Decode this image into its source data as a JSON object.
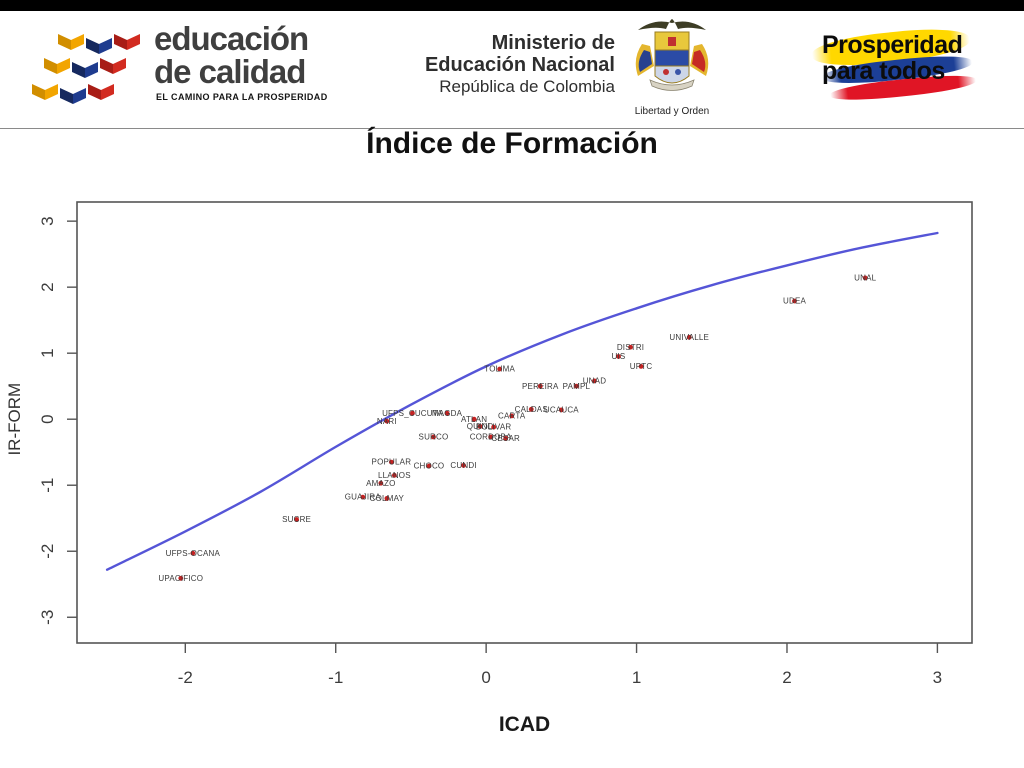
{
  "header": {
    "logo_left": {
      "line1": "educación",
      "line2": "de calidad",
      "tagline": "EL CAMINO PARA LA PROSPERIDAD",
      "colors": {
        "yellow": "#f2a500",
        "blue": "#1f3c8f",
        "red": "#d22b20"
      }
    },
    "logo_center": {
      "line1": "Ministerio de",
      "line2": "Educación Nacional",
      "line3": "República de Colombia",
      "crest_caption": "Libertad y Orden"
    },
    "logo_right": {
      "line1": "Prosperidad",
      "line2": "para todos",
      "colors": {
        "yellow": "#ffd800",
        "blue": "#1c3f96",
        "red": "#e01525"
      }
    },
    "title": "Índice de Formación"
  },
  "chart_data": {
    "type": "scatter",
    "title": "",
    "xlabel": "ICAD",
    "ylabel": "IR-FORM",
    "xlim": [
      -2.72,
      3.23
    ],
    "ylim": [
      -3.39,
      3.29
    ],
    "x_ticks": [
      -2,
      -1,
      0,
      1,
      2,
      3
    ],
    "y_ticks": [
      -3,
      -2,
      -1,
      0,
      1,
      2,
      3
    ],
    "grid": false,
    "point_color": "#c42222",
    "label_color": "#3a3a3a",
    "axis_color": "#555555",
    "tick_label_color": "#3c3c3c",
    "curve_color": "#4747d4",
    "points": [
      {
        "label": "UNAL",
        "x": 2.52,
        "y": 2.14
      },
      {
        "label": "UDEA",
        "x": 2.05,
        "y": 1.79
      },
      {
        "label": "UNIVALLE",
        "x": 1.35,
        "y": 1.24
      },
      {
        "label": "DISTRI",
        "x": 0.96,
        "y": 1.09
      },
      {
        "label": "UIS",
        "x": 0.88,
        "y": 0.95
      },
      {
        "label": "UPTC",
        "x": 1.03,
        "y": 0.8
      },
      {
        "label": "UNAD",
        "x": 0.72,
        "y": 0.58
      },
      {
        "label": "PAMPL",
        "x": 0.6,
        "y": 0.5
      },
      {
        "label": "PEREIRA",
        "x": 0.36,
        "y": 0.5
      },
      {
        "label": "TOLIMA",
        "x": 0.09,
        "y": 0.76
      },
      {
        "label": "CALDAS",
        "x": 0.3,
        "y": 0.15
      },
      {
        "label": "UCAUCA",
        "x": 0.5,
        "y": 0.14
      },
      {
        "label": "CARTA",
        "x": 0.17,
        "y": 0.05
      },
      {
        "label": "UFPS_CUCUTA",
        "x": -0.49,
        "y": 0.09
      },
      {
        "label": "MAGDA",
        "x": -0.26,
        "y": 0.09
      },
      {
        "label": "NARI",
        "x": -0.66,
        "y": -0.03
      },
      {
        "label": "ATLAN",
        "x": -0.08,
        "y": 0.0
      },
      {
        "label": "QUIND",
        "x": -0.04,
        "y": -0.11
      },
      {
        "label": "BOLIVAR",
        "x": 0.05,
        "y": -0.12
      },
      {
        "label": "SURCO",
        "x": -0.35,
        "y": -0.27
      },
      {
        "label": "CORDOBA",
        "x": 0.03,
        "y": -0.27
      },
      {
        "label": "CESAR",
        "x": 0.13,
        "y": -0.29
      },
      {
        "label": "POPULAR",
        "x": -0.63,
        "y": -0.65
      },
      {
        "label": "CHOCO",
        "x": -0.38,
        "y": -0.71
      },
      {
        "label": "CUNDI",
        "x": -0.15,
        "y": -0.7
      },
      {
        "label": "LLANOS",
        "x": -0.61,
        "y": -0.85
      },
      {
        "label": "AMAZO",
        "x": -0.7,
        "y": -0.97
      },
      {
        "label": "GUAJIRA",
        "x": -0.82,
        "y": -1.18
      },
      {
        "label": "COLMAY",
        "x": -0.66,
        "y": -1.2
      },
      {
        "label": "SUCRE",
        "x": -1.26,
        "y": -1.52
      },
      {
        "label": "UFPS-OCANA",
        "x": -1.95,
        "y": -2.03
      },
      {
        "label": "UPACIFICO",
        "x": -2.03,
        "y": -2.41
      }
    ],
    "curve": [
      [
        -2.52,
        -2.28
      ],
      [
        -2.0,
        -1.7
      ],
      [
        -1.5,
        -1.1
      ],
      [
        -1.0,
        -0.42
      ],
      [
        -0.5,
        0.22
      ],
      [
        0.0,
        0.8
      ],
      [
        0.5,
        1.28
      ],
      [
        1.0,
        1.68
      ],
      [
        1.5,
        2.03
      ],
      [
        2.0,
        2.33
      ],
      [
        2.5,
        2.6
      ],
      [
        3.0,
        2.82
      ]
    ],
    "legend": null
  }
}
